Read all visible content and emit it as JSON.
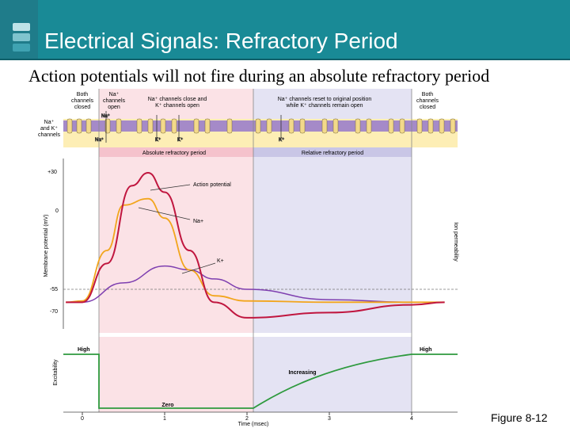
{
  "slide": {
    "title": "Electrical Signals: Refractory Period",
    "subtitle": "Action potentials will not fire during an absolute refractory period",
    "figure_label": "Figure 8-12"
  },
  "colors": {
    "title_bar": "#198a96",
    "absolute_region": "#fbe2e6",
    "relative_region": "#e4e3f3",
    "action_potential": "#c0163f",
    "na_curve": "#f2a51c",
    "k_curve": "#7e3fb0",
    "excitability_curve": "#2e9a3e",
    "membrane": "#a58ac8"
  },
  "channel_states": {
    "both_closed_left": "Both channels closed",
    "na_open": "Na+ channels open",
    "na_close_k_open": "Na+ channels close and K+ channels open",
    "na_reset_k_open": "Na+ channels reset to original position while K+ channels remain open",
    "both_closed_right": "Both channels closed",
    "channels_label": "Na+ and K+ channels"
  },
  "periods": {
    "absolute": "Absolute refractory period",
    "relative": "Relative refractory period"
  },
  "top_plot": {
    "ylabel": "Membrane potential (mV)",
    "y2label": "Ion permeability",
    "ticks": [
      "+30",
      "0",
      "-55",
      "-70"
    ],
    "curve_labels": {
      "action_potential": "Action potential",
      "na": "Na+",
      "k": "K+"
    }
  },
  "bottom_plot": {
    "ylabel": "Excitability",
    "high_left": "High",
    "high_right": "High",
    "zero": "Zero",
    "increasing": "Increasing",
    "xlabel": "Time (msec)",
    "xticks": [
      "0",
      "1",
      "2",
      "3",
      "4"
    ]
  },
  "chart_data": {
    "type": "line",
    "xlabel": "Time (msec)",
    "ylabel": "Membrane potential (mV)",
    "x_ticks": [
      0,
      1,
      2,
      3,
      4
    ],
    "y_ticks": [
      30,
      0,
      -55,
      -70
    ],
    "series": [
      {
        "name": "Action potential",
        "x": [
          -0.2,
          0,
          0.3,
          0.6,
          0.8,
          1.0,
          1.3,
          1.6,
          2.0,
          3.0,
          4.0,
          4.4
        ],
        "y": [
          -70,
          -70,
          -40,
          20,
          30,
          15,
          -30,
          -70,
          -82,
          -78,
          -72,
          -70
        ]
      },
      {
        "name": "Na+",
        "x": [
          -0.2,
          0,
          0.3,
          0.5,
          0.8,
          1.0,
          1.3,
          1.6,
          2.0,
          3.0,
          4.4
        ],
        "y": [
          -70,
          -69,
          -30,
          5,
          10,
          -5,
          -45,
          -65,
          -69,
          -70,
          -70
        ]
      },
      {
        "name": "K+",
        "x": [
          -0.2,
          0,
          0.5,
          1.0,
          1.3,
          1.6,
          2.0,
          3.0,
          4.0,
          4.4
        ],
        "y": [
          -70,
          -70,
          -55,
          -42,
          -45,
          -52,
          -60,
          -68,
          -70,
          -70
        ]
      }
    ]
  }
}
